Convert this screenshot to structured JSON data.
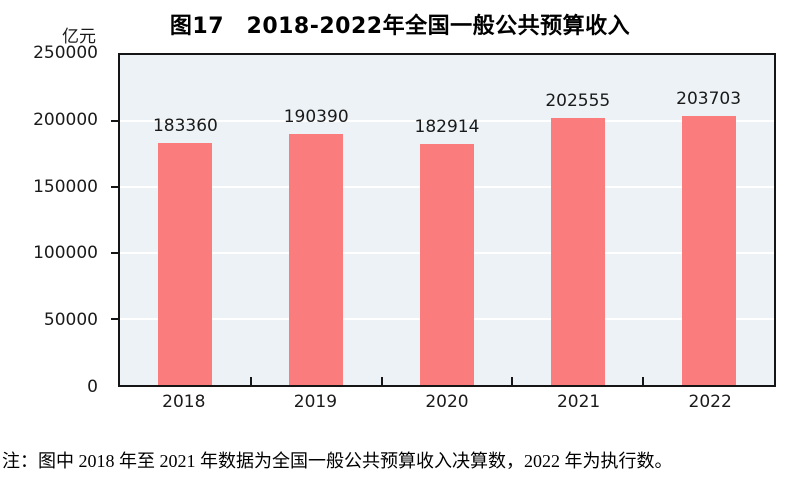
{
  "figure": {
    "unit_label": "亿元",
    "note": "注：图中 2018 年至 2021 年数据为全国一般公共预算收入决算数，2022 年为执行数。"
  },
  "chart_data": {
    "type": "bar",
    "title": "图17　2018-2022年全国一般公共预算收入",
    "categories": [
      "2018",
      "2019",
      "2020",
      "2021",
      "2022"
    ],
    "values": [
      183360,
      190390,
      182914,
      202555,
      203703
    ],
    "data_labels": [
      "183360",
      "190390",
      "182914",
      "202555",
      "203703"
    ],
    "xlabel": "",
    "ylabel": "亿元",
    "ylim": [
      0,
      250000
    ],
    "yticks": [
      0,
      50000,
      100000,
      150000,
      200000,
      250000
    ],
    "ytick_labels": [
      "0",
      "50000",
      "100000",
      "150000",
      "200000",
      "250000"
    ],
    "grid": true,
    "legend_position": "none",
    "bar_color": "#FA7C7C",
    "plot_background": "#ECF2F6",
    "gridline_color": "#FFFFFF",
    "axis_color": "#151515"
  }
}
